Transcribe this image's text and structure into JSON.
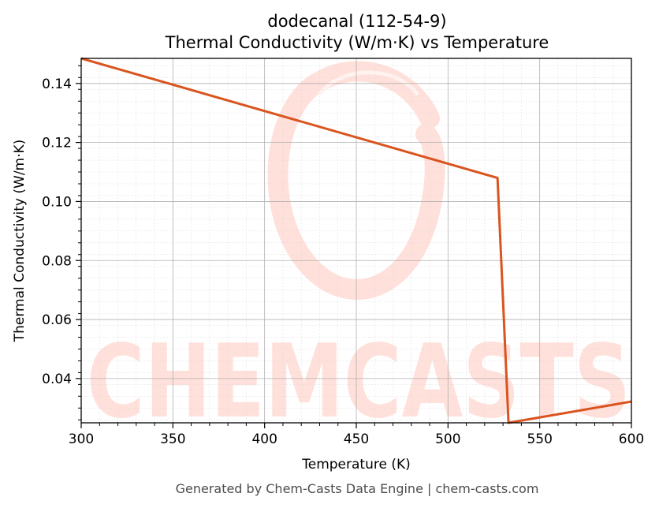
{
  "chart_data": {
    "type": "line",
    "title": "dodecanal (112-54-9)",
    "subtitle": "Thermal Conductivity (W/m·K) vs Temperature",
    "xlabel": "Temperature (K)",
    "ylabel": "Thermal Conductivity (W/m·K)",
    "xlim": [
      300,
      600
    ],
    "ylim": [
      0.025,
      0.1485
    ],
    "xticks": [
      300,
      350,
      400,
      450,
      500,
      550,
      600
    ],
    "xtick_labels": [
      "300",
      "350",
      "400",
      "450",
      "500",
      "550",
      "600"
    ],
    "yticks": [
      0.04,
      0.06,
      0.08,
      0.1,
      0.12,
      0.14
    ],
    "ytick_labels": [
      "0.04",
      "0.06",
      "0.08",
      "0.10",
      "0.12",
      "0.14"
    ],
    "grid": true,
    "series": [
      {
        "color": "#d9541e",
        "x": [
          300,
          527,
          533,
          600
        ],
        "y": [
          0.1485,
          0.108,
          0.025,
          0.0322
        ]
      }
    ]
  },
  "watermark": {
    "text": "CHEMCASTS"
  },
  "footer": {
    "text": "Generated by Chem-Casts Data Engine | chem-casts.com"
  }
}
